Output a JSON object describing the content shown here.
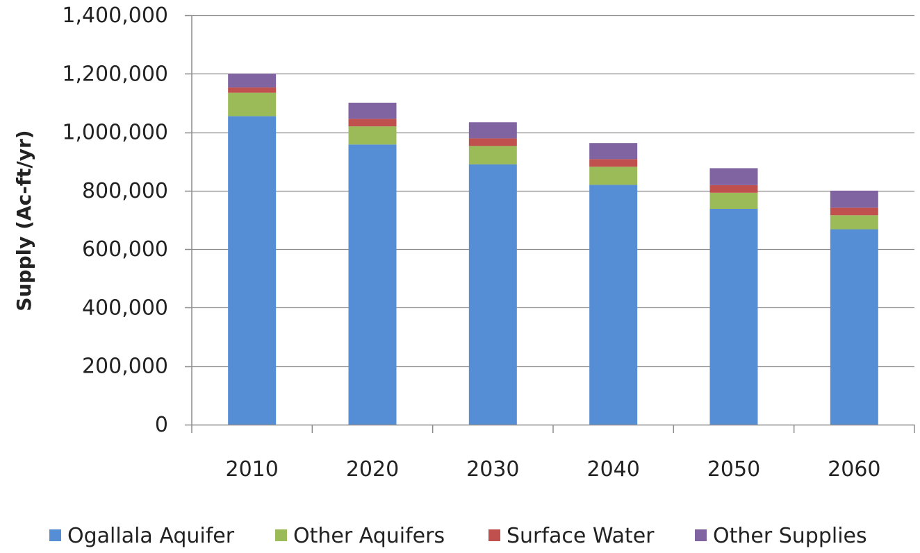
{
  "chart_data": {
    "type": "bar",
    "stacked": true,
    "categories": [
      "2010",
      "2020",
      "2030",
      "2040",
      "2050",
      "2060"
    ],
    "series": [
      {
        "name": "Ogallala Aquifer",
        "color": "#558ED5",
        "values": [
          1055000,
          958000,
          890000,
          820000,
          738000,
          668000
        ]
      },
      {
        "name": "Other Aquifers",
        "color": "#9BBB59",
        "values": [
          80000,
          62000,
          63000,
          62000,
          55000,
          48000
        ]
      },
      {
        "name": "Surface Water",
        "color": "#C0504D",
        "values": [
          18000,
          26000,
          26000,
          26000,
          26000,
          26000
        ]
      },
      {
        "name": "Other Supplies",
        "color": "#8064A2",
        "values": [
          47000,
          55000,
          55000,
          55000,
          58000,
          58000
        ]
      }
    ],
    "title": "",
    "xlabel": "",
    "ylabel": "Supply (Ac-ft/yr)",
    "ylim": [
      0,
      1400000
    ],
    "yticks": [
      0,
      200000,
      400000,
      600000,
      800000,
      1000000,
      1200000,
      1400000
    ],
    "ytick_labels": [
      "0",
      "200,000",
      "400,000",
      "600,000",
      "800,000",
      "1,000,000",
      "1,200,000",
      "1,400,000"
    ],
    "grid": true,
    "legend": "bottom"
  }
}
